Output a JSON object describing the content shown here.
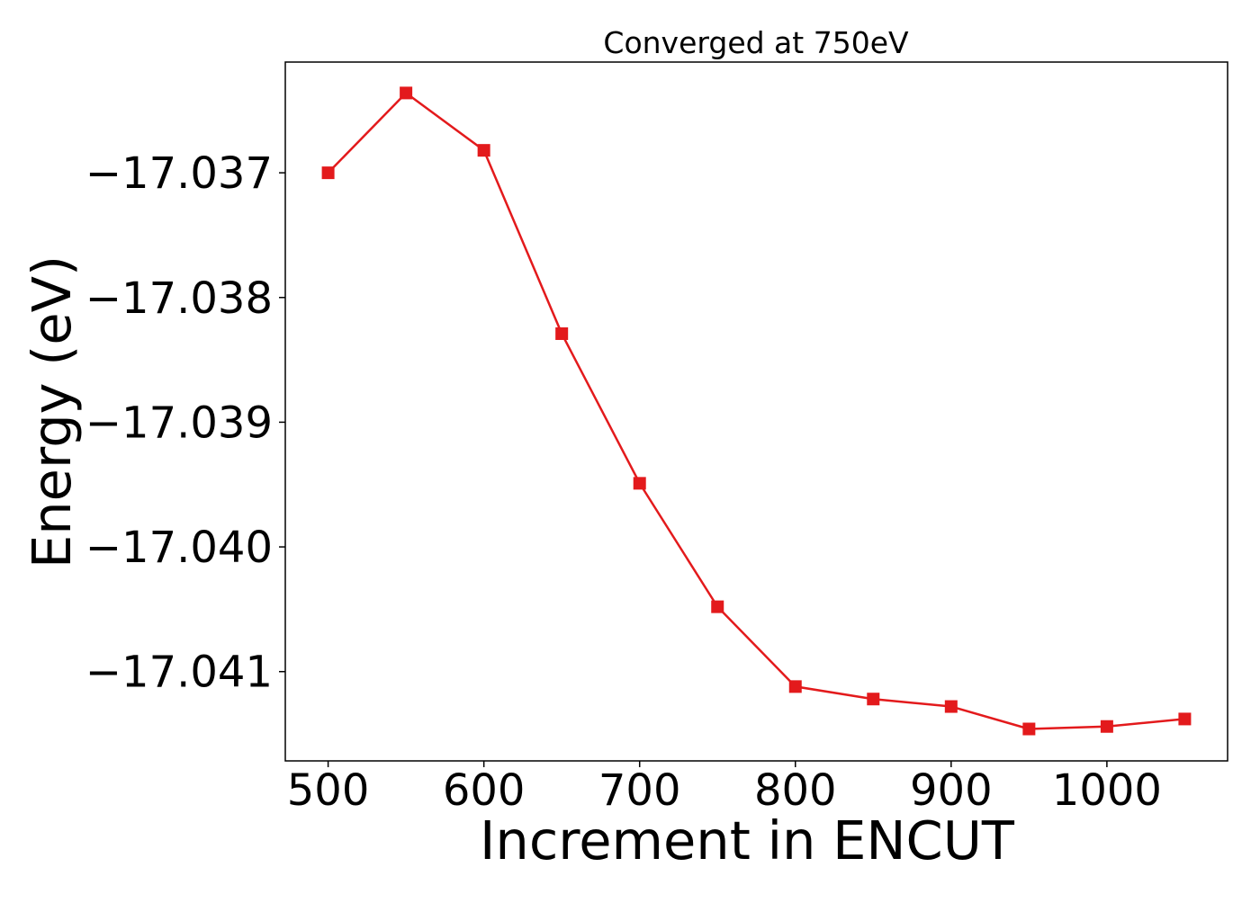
{
  "chart_data": {
    "type": "line",
    "title": "Converged at 750eV",
    "xlabel": "Increment in ENCUT",
    "ylabel": "Energy (eV)",
    "x": [
      500,
      550,
      600,
      650,
      700,
      750,
      800,
      850,
      900,
      950,
      1000,
      1050
    ],
    "series": [
      {
        "values": [
          -17.037,
          -17.03636,
          -17.03682,
          -17.03829,
          -17.03949,
          -17.04048,
          -17.04112,
          -17.04122,
          -17.04128,
          -17.04146,
          -17.04144,
          -17.04138
        ],
        "color": "#e31a1c",
        "marker": "square"
      }
    ],
    "xlim": [
      472.5,
      1077.5
    ],
    "ylim": [
      -17.041716,
      -17.036112
    ],
    "xticks": [
      500,
      600,
      700,
      800,
      900,
      1000
    ],
    "xtick_labels": [
      "500",
      "600",
      "700",
      "800",
      "900",
      "1000"
    ],
    "yticks": [
      -17.037,
      -17.038,
      -17.039,
      -17.04,
      -17.041
    ],
    "ytick_labels": [
      "−17.037",
      "−17.038",
      "−17.039",
      "−17.040",
      "−17.041"
    ],
    "grid": false,
    "legend": "none"
  }
}
